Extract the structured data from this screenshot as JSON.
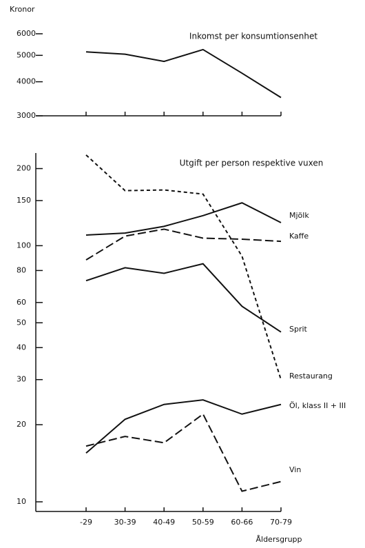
{
  "chart_data": [
    {
      "type": "line",
      "title": "Inkomst per konsumtionsenhet",
      "y_label": "Kronor",
      "values": [
        5150,
        5050,
        4750,
        5250,
        4300,
        3500
      ],
      "color": "#111111",
      "ylim": [
        3000,
        6000
      ],
      "yticks": [
        3000,
        4000,
        5000,
        6000
      ],
      "log_scale": true
    },
    {
      "type": "line",
      "title": "Utgift per person respektive vuxen",
      "x_label": "Åldersgrupp",
      "categories": [
        "-29",
        "30-39",
        "40-49",
        "50-59",
        "60-66",
        "70-79"
      ],
      "ylim": [
        10,
        230
      ],
      "yticks": [
        10,
        20,
        30,
        40,
        50,
        60,
        80,
        100,
        150,
        200
      ],
      "log_scale": true,
      "series": [
        {
          "name": "Mjölk",
          "color": "#111111",
          "dash": "solid",
          "values": [
            110,
            112,
            119,
            131,
            147,
            123
          ]
        },
        {
          "name": "Kaffe",
          "color": "#111111",
          "dash": "long",
          "values": [
            88,
            109,
            116,
            107,
            106,
            104
          ]
        },
        {
          "name": "Sprit",
          "color": "#111111",
          "dash": "solid",
          "values": [
            73,
            82,
            78,
            85,
            58,
            46
          ]
        },
        {
          "name": "Restaurang",
          "color": "#111111",
          "dash": "short",
          "values": [
            226,
            164,
            165,
            159,
            91,
            30
          ]
        },
        {
          "name": "Öl, klass II + III",
          "color": "#111111",
          "dash": "solid",
          "values": [
            15.5,
            21,
            24,
            25,
            22,
            24
          ]
        },
        {
          "name": "Vin",
          "color": "#111111",
          "dash": "long",
          "values": [
            16.5,
            18,
            17,
            22,
            11,
            12
          ]
        }
      ]
    }
  ]
}
